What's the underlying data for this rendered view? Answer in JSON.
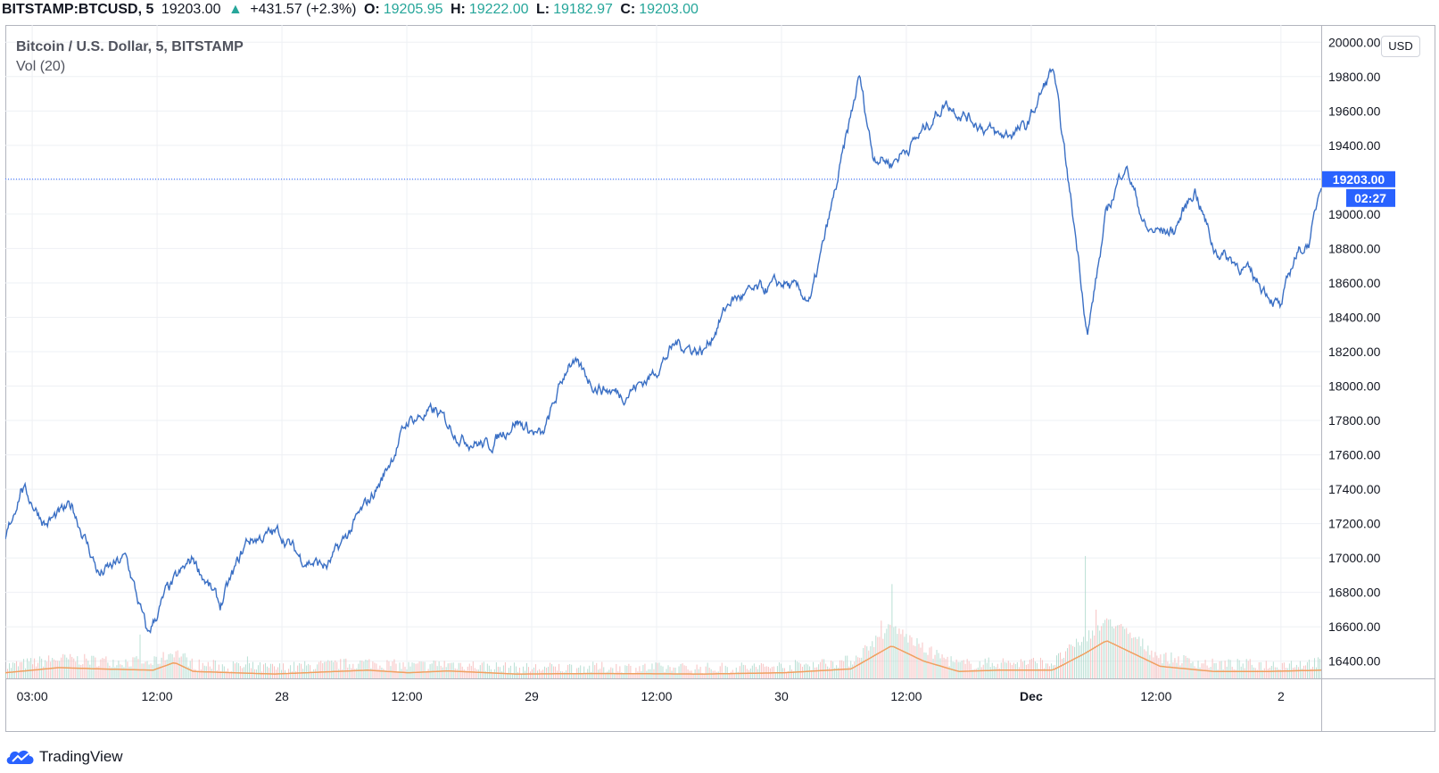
{
  "header": {
    "symbol": "BITSTAMP:BTCUSD, 5",
    "last": "19203.00",
    "change": "+431.57 (+2.3%)",
    "o_label": "O:",
    "o_value": "19205.95",
    "h_label": "H:",
    "h_value": "19222.00",
    "l_label": "L:",
    "l_value": "19182.97",
    "c_label": "C:",
    "c_value": "19203.00",
    "up_arrow": "▲"
  },
  "legend": {
    "title": "Bitcoin / U.S. Dollar, 5, BITSTAMP",
    "volume": "Vol (20)"
  },
  "currency_button": "USD",
  "branding": "TradingView",
  "colors": {
    "price_line": "#3a6fc4",
    "volume_ma": "#f0a060",
    "volume_up": "#a7d7c9",
    "volume_down": "#f5b3b3",
    "grid": "#eef0f4",
    "price_label_bg": "#2962ff",
    "positive": "#26a69a"
  },
  "chart_data": {
    "type": "line",
    "title": "Bitcoin / U.S. Dollar, 5, BITSTAMP",
    "series": [
      {
        "name": "",
        "x": [
          "03:00",
          "12:00",
          "28",
          "12:00",
          "29",
          "12:00",
          "30",
          "12:00",
          "Dec",
          "12:00",
          "2"
        ],
        "y_keypoints": [
          [
            0.0,
            17100
          ],
          [
            0.6,
            17420
          ],
          [
            1.5,
            17200
          ],
          [
            2.5,
            17300
          ],
          [
            3.5,
            16900
          ],
          [
            4.5,
            17000
          ],
          [
            5.3,
            16550
          ],
          [
            6.0,
            16800
          ],
          [
            7.0,
            17000
          ],
          [
            8.0,
            16720
          ],
          [
            9.0,
            17100
          ],
          [
            10.2,
            17150
          ],
          [
            11.0,
            17000
          ],
          [
            12.0,
            16950
          ],
          [
            13.0,
            17200
          ],
          [
            14.0,
            17450
          ],
          [
            15.0,
            17800
          ],
          [
            16.0,
            17850
          ],
          [
            17.0,
            17700
          ],
          [
            18.0,
            17650
          ],
          [
            19.0,
            17800
          ],
          [
            20.0,
            17700
          ],
          [
            21.0,
            18150
          ],
          [
            22.0,
            18000
          ],
          [
            23.0,
            17950
          ],
          [
            24.0,
            18050
          ],
          [
            25.0,
            18250
          ],
          [
            26.0,
            18200
          ],
          [
            27.0,
            18500
          ],
          [
            28.0,
            18550
          ],
          [
            29.0,
            18600
          ],
          [
            30.0,
            18500
          ],
          [
            31.0,
            19200
          ],
          [
            31.8,
            19800
          ],
          [
            32.3,
            19350
          ],
          [
            33.0,
            19300
          ],
          [
            34.0,
            19450
          ],
          [
            35.0,
            19650
          ],
          [
            36.0,
            19550
          ],
          [
            37.0,
            19450
          ],
          [
            38.0,
            19500
          ],
          [
            39.0,
            19850
          ],
          [
            39.4,
            19400
          ],
          [
            40.0,
            18700
          ],
          [
            40.3,
            18300
          ],
          [
            41.0,
            19000
          ],
          [
            41.7,
            19300
          ],
          [
            42.5,
            18900
          ],
          [
            43.5,
            18900
          ],
          [
            44.3,
            19150
          ],
          [
            45.0,
            18800
          ],
          [
            46.0,
            18700
          ],
          [
            47.0,
            18550
          ],
          [
            47.5,
            18450
          ],
          [
            48.0,
            18750
          ],
          [
            48.6,
            18850
          ],
          [
            49.0,
            19203
          ]
        ],
        "last": 19203.0,
        "last_time": "02:27"
      }
    ],
    "volume": {
      "name": "Vol (20)",
      "spikes": [
        [
          5,
          0.8
        ],
        [
          9,
          0.4
        ],
        [
          16,
          0.35
        ],
        [
          33,
          1.7
        ],
        [
          32.6,
          1.1
        ],
        [
          40.2,
          2.2
        ],
        [
          40.6,
          1.4
        ],
        [
          41.0,
          1.0
        ]
      ],
      "ma_keypoints": [
        [
          0,
          0.15
        ],
        [
          2,
          0.35
        ],
        [
          3.5,
          0.3
        ],
        [
          5.5,
          0.25
        ],
        [
          6.3,
          0.55
        ],
        [
          7,
          0.2
        ],
        [
          10,
          0.1
        ],
        [
          13.5,
          0.25
        ],
        [
          15,
          0.15
        ],
        [
          16.5,
          0.22
        ],
        [
          19,
          0.1
        ],
        [
          22,
          0.12
        ],
        [
          26,
          0.1
        ],
        [
          29,
          0.15
        ],
        [
          31.5,
          0.3
        ],
        [
          33.0,
          1.2
        ],
        [
          34.2,
          0.6
        ],
        [
          35.5,
          0.2
        ],
        [
          37,
          0.25
        ],
        [
          39,
          0.25
        ],
        [
          40.2,
          0.9
        ],
        [
          41.0,
          1.4
        ],
        [
          42.0,
          0.9
        ],
        [
          43,
          0.4
        ],
        [
          45,
          0.2
        ],
        [
          47,
          0.2
        ],
        [
          49,
          0.25
        ]
      ]
    },
    "x_ticks": [
      "03:00",
      "12:00",
      "28",
      "12:00",
      "29",
      "12:00",
      "30",
      "12:00",
      "Dec",
      "12:00",
      "2"
    ],
    "x_bold": [
      "Dec"
    ],
    "y_ticks": [
      "16400.00",
      "16600.00",
      "16800.00",
      "17000.00",
      "17200.00",
      "17400.00",
      "17600.00",
      "17800.00",
      "18000.00",
      "18200.00",
      "18400.00",
      "18600.00",
      "18800.00",
      "19000.00",
      "19200.00",
      "19400.00",
      "19600.00",
      "19800.00",
      "20000.00"
    ],
    "ylim": [
      16300,
      20100
    ],
    "grid": true,
    "price_label": "19203.00",
    "time_label": "02:27"
  }
}
